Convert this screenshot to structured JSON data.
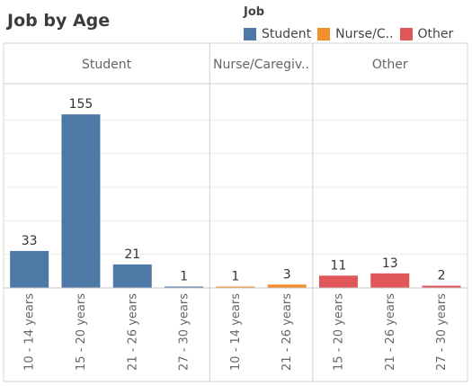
{
  "chart_data": {
    "type": "bar",
    "title": "Job by Age",
    "legend": {
      "title": "Job",
      "placement": "top-right",
      "entries": [
        {
          "label": "Student",
          "color": "#4e79a7"
        },
        {
          "label": "Nurse/C..",
          "color": "#f28e2b"
        },
        {
          "label": "Other",
          "color": "#e15759"
        }
      ]
    },
    "ylim": [
      0,
      180
    ],
    "grid": true,
    "panels": [
      {
        "name": "Student",
        "color": "#4e79a7",
        "categories": [
          "10 - 14 years",
          "15 - 20 years",
          "21 - 26 years",
          "27 - 30 years"
        ],
        "values": [
          33,
          155,
          21,
          1
        ]
      },
      {
        "name": "Nurse/Caregiv..",
        "color": "#f28e2b",
        "categories": [
          "10 - 14 years",
          "21 - 26 years"
        ],
        "values": [
          1,
          3
        ]
      },
      {
        "name": "Other",
        "color": "#e15759",
        "categories": [
          "15 - 20 years",
          "21 - 26 years",
          "27 - 30 years"
        ],
        "values": [
          11,
          13,
          2
        ]
      }
    ]
  }
}
